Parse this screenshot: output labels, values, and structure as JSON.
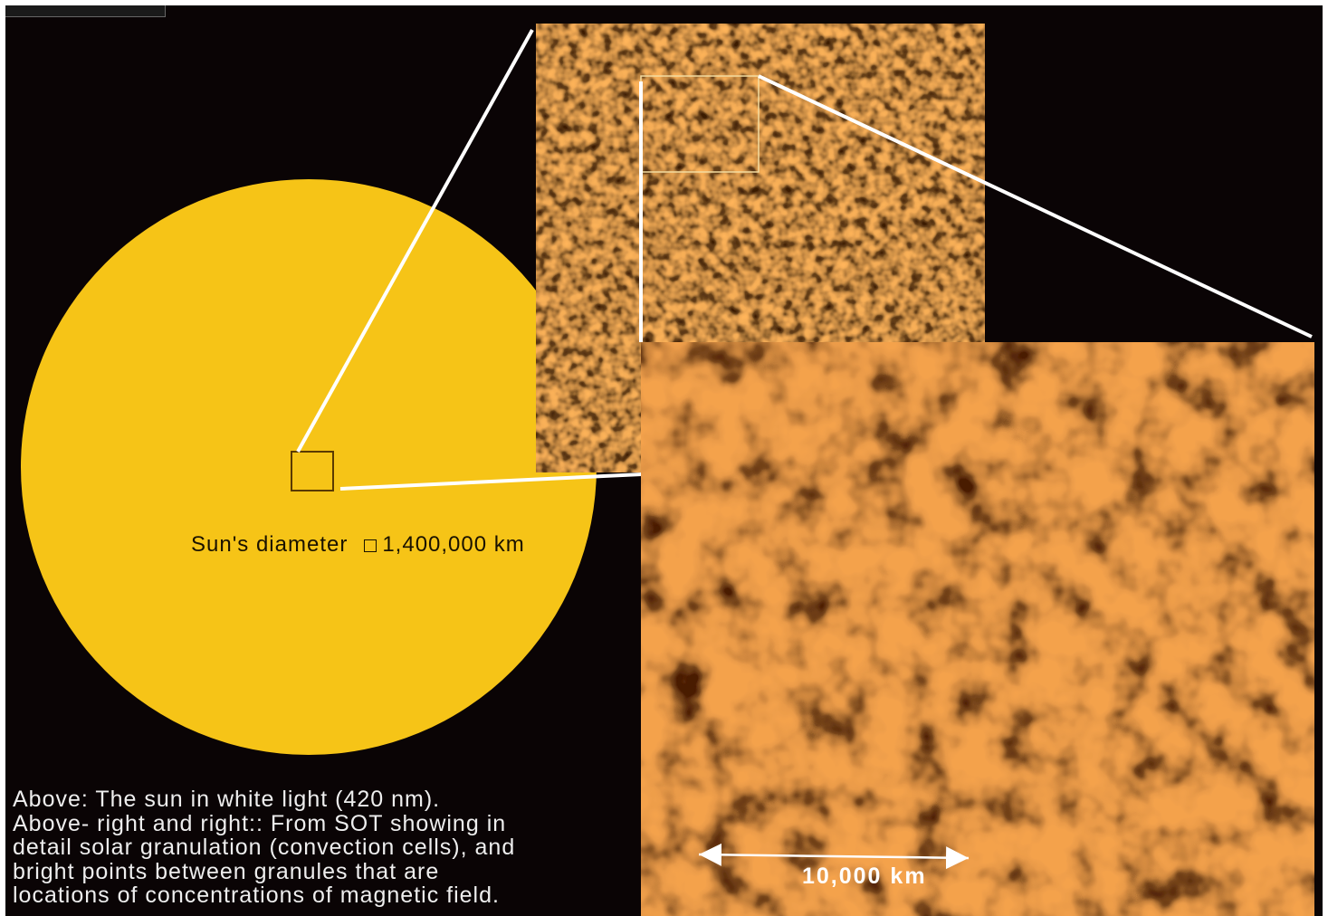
{
  "sun": {
    "diameter_label": "Sun's diameter",
    "diameter_value": "1,400,000 km",
    "color": "#f6c417"
  },
  "caption": {
    "line1": "Above: The sun in white light (420 nm).",
    "line2": "Above- right and right:: From SOT showing in",
    "line3": "detail solar granulation (convection cells), and",
    "line4": "bright points between granules that are",
    "line5": "locations of concentrations of magnetic field."
  },
  "scale_bar": {
    "label": "10,000 km"
  },
  "colors": {
    "background": "#0a0405",
    "granule_light": "#f0a248",
    "granule_dark": "#3a1502",
    "connector": "#ffffff"
  }
}
